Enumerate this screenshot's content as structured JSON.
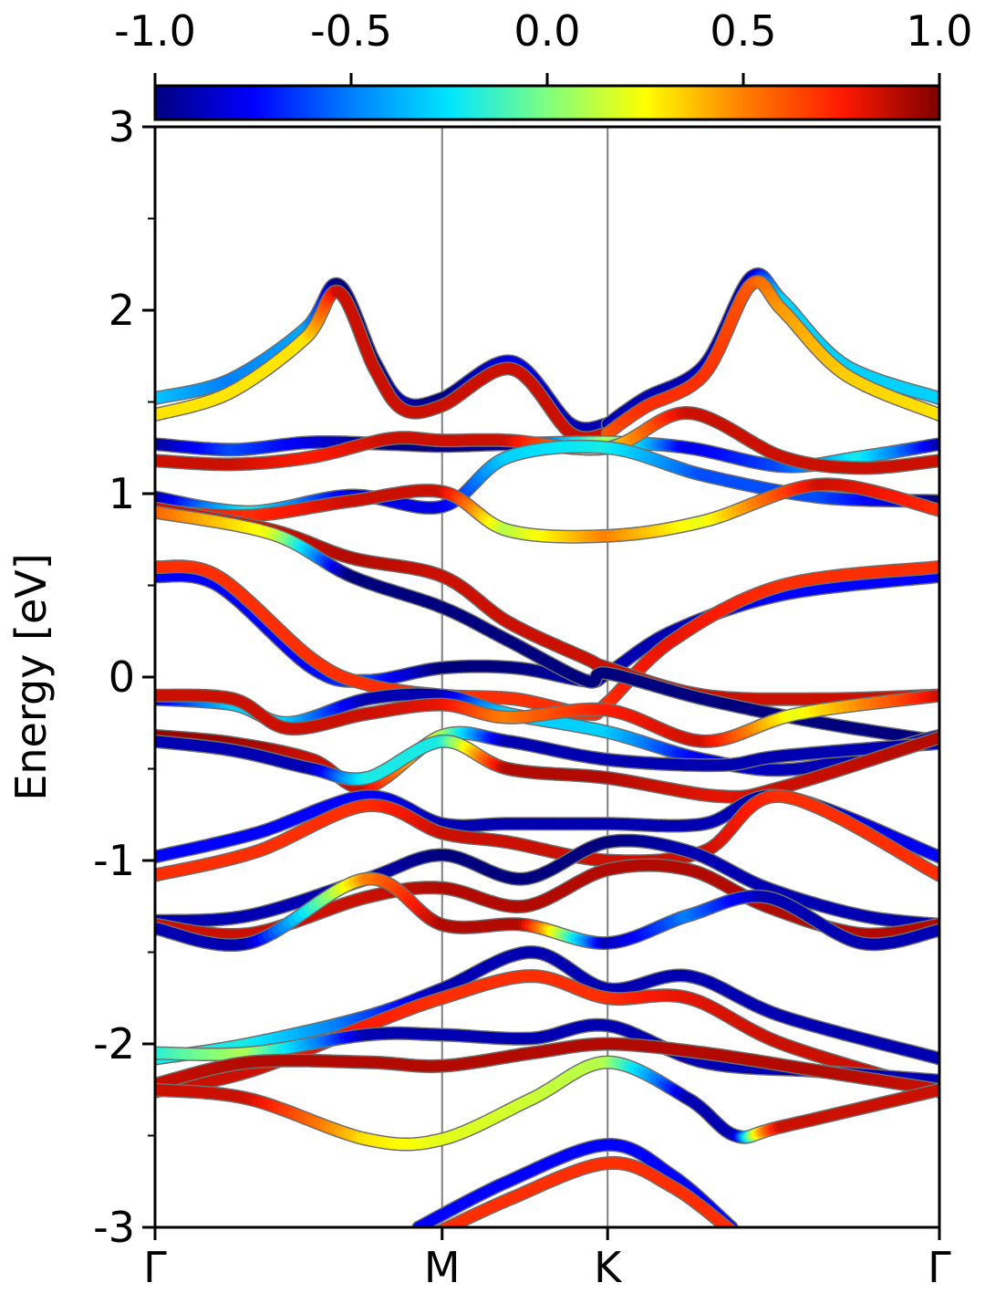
{
  "chart_data": {
    "type": "line",
    "title": "",
    "xlabel": "",
    "ylabel": "Energy [eV]",
    "ylim": [
      -3,
      3
    ],
    "y_major_ticks": [
      -3,
      -2,
      -1,
      0,
      1,
      2,
      3
    ],
    "y_tick_labels": [
      "-3",
      "-2",
      "-1",
      "0",
      "1",
      "2",
      "3"
    ],
    "y_minor_ticks": [
      -2.5,
      -1.5,
      -0.5,
      0.5,
      1.5,
      2.5
    ],
    "x_range": [
      0,
      1
    ],
    "x_ticks": [
      0,
      0.366,
      0.577,
      1
    ],
    "x_tick_labels": [
      "Γ",
      "M",
      "K",
      "Γ"
    ],
    "vlines_at": [
      0.366,
      0.577
    ],
    "grid": false,
    "colorbar": {
      "label": "",
      "range": [
        -1,
        1
      ],
      "ticks": [
        -1.0,
        -0.5,
        0.0,
        0.5,
        1.0
      ],
      "tick_labels": [
        "-1.0",
        "-0.5",
        "0.0",
        "0.5",
        "1.0"
      ],
      "colormap": "jet",
      "stops": [
        "#00007f",
        "#0000ff",
        "#007fff",
        "#00e5ff",
        "#7fff7f",
        "#ffff00",
        "#ff7f00",
        "#ff1a00",
        "#7f0000"
      ],
      "placement": "top"
    },
    "series": [
      {
        "x": [
          0,
          0.095,
          0.192,
          0.234,
          0.28,
          0.316,
          0.366,
          0.455,
          0.53,
          0.577
        ],
        "y": [
          1.52,
          1.62,
          1.9,
          2.14,
          1.72,
          1.5,
          1.52,
          1.72,
          1.38,
          1.38
        ],
        "colors": [
          -0.3,
          -0.5,
          -0.4,
          -1,
          -1,
          -0.9,
          -1,
          -0.8,
          -0.9,
          -0.9
        ]
      },
      {
        "x": [
          0,
          0.095,
          0.192,
          0.234,
          0.28,
          0.316,
          0.366,
          0.455,
          0.53,
          0.577
        ],
        "y": [
          1.43,
          1.55,
          1.85,
          2.1,
          1.68,
          1.46,
          1.48,
          1.68,
          1.33,
          1.33
        ],
        "colors": [
          0.3,
          0.3,
          0.3,
          0.85,
          0.85,
          0.85,
          0.85,
          0.85,
          0.85,
          0.85
        ]
      },
      {
        "x": [
          0.577,
          0.624,
          0.7,
          0.76,
          0.8,
          0.88,
          1
        ],
        "y": [
          1.38,
          1.52,
          1.7,
          2.18,
          2.05,
          1.7,
          1.52
        ],
        "colors": [
          -0.9,
          -0.9,
          -0.9,
          -0.9,
          -0.3,
          -0.3,
          -0.3
        ]
      },
      {
        "x": [
          0.577,
          0.624,
          0.7,
          0.76,
          0.8,
          0.88,
          1
        ],
        "y": [
          1.33,
          1.47,
          1.65,
          2.14,
          2.0,
          1.65,
          1.43
        ],
        "colors": [
          0.6,
          0.7,
          0.7,
          0.6,
          0.45,
          0.35,
          0.3
        ]
      },
      {
        "x": [
          0,
          0.1,
          0.2,
          0.3,
          0.366,
          0.45,
          0.577,
          0.68,
          0.8,
          0.9,
          1
        ],
        "y": [
          1.27,
          1.24,
          1.28,
          1.27,
          1.26,
          1.27,
          1.28,
          1.25,
          1.15,
          1.2,
          1.27
        ],
        "colors": [
          -1,
          -0.6,
          -0.8,
          -1,
          -1,
          -1,
          0.1,
          -0.8,
          -0.6,
          -0.2,
          -0.9
        ]
      },
      {
        "x": [
          0,
          0.1,
          0.2,
          0.3,
          0.366,
          0.45,
          0.577,
          0.68,
          0.8,
          0.9,
          1
        ],
        "y": [
          1.18,
          1.16,
          1.2,
          1.3,
          1.29,
          1.29,
          1.25,
          1.44,
          1.2,
          1.14,
          1.18
        ],
        "colors": [
          0.85,
          0.85,
          0.75,
          0.85,
          0.85,
          0.85,
          0.3,
          0.85,
          0.85,
          0.85,
          0.85
        ]
      },
      {
        "x": [
          0,
          0.12,
          0.25,
          0.366,
          0.45,
          0.577,
          0.7,
          0.85,
          1
        ],
        "y": [
          0.98,
          0.9,
          0.99,
          0.93,
          1.2,
          1.25,
          1.1,
          0.98,
          0.96
        ],
        "colors": [
          -1,
          -0.2,
          -0.8,
          -0.8,
          -0.3,
          -0.2,
          -0.6,
          -0.6,
          -1
        ]
      },
      {
        "x": [
          0,
          0.12,
          0.25,
          0.366,
          0.45,
          0.577,
          0.7,
          0.85,
          1
        ],
        "y": [
          0.91,
          0.88,
          0.96,
          1.01,
          0.8,
          0.77,
          0.85,
          1.05,
          0.91
        ],
        "colors": [
          0.85,
          0.7,
          0.85,
          0.85,
          0.1,
          0.5,
          0.2,
          0.85,
          0.7
        ]
      },
      {
        "x": [
          0,
          0.08,
          0.2,
          0.27,
          0.366,
          0.46,
          0.55,
          0.577,
          0.66,
          0.8,
          1
        ],
        "y": [
          0.55,
          0.5,
          0.05,
          -0.02,
          0.05,
          0.05,
          -0.02,
          0.02,
          0.25,
          0.45,
          0.55
        ],
        "colors": [
          -0.75,
          -0.75,
          -0.75,
          -0.6,
          -1,
          -1,
          -0.9,
          -0.9,
          -0.9,
          -0.75,
          -0.75
        ]
      },
      {
        "x": [
          0,
          0.08,
          0.2,
          0.27,
          0.366,
          0.46,
          0.55,
          0.577,
          0.66,
          0.8,
          1
        ],
        "y": [
          0.6,
          0.55,
          0.1,
          -0.04,
          -0.1,
          -0.12,
          -0.2,
          -0.14,
          0.2,
          0.5,
          0.6
        ],
        "colors": [
          0.7,
          0.7,
          0.7,
          0.7,
          0.7,
          0.7,
          0.7,
          0.7,
          0.8,
          0.7,
          0.7
        ]
      },
      {
        "x": [
          0,
          0.15,
          0.25,
          0.366,
          0.45,
          0.55,
          0.577,
          0.7,
          0.85,
          1
        ],
        "y": [
          0.92,
          0.8,
          0.65,
          0.55,
          0.3,
          0.1,
          0.05,
          -0.1,
          -0.12,
          -0.1
        ],
        "colors": [
          0.85,
          0.85,
          0.9,
          0.85,
          0.85,
          0.85,
          0.85,
          0.85,
          0.85,
          0.85
        ]
      },
      {
        "x": [
          0,
          0.15,
          0.25,
          0.366,
          0.45,
          0.55,
          0.577,
          0.7,
          0.85,
          1
        ],
        "y": [
          0.9,
          0.78,
          0.55,
          0.38,
          0.2,
          -0.02,
          0.02,
          -0.12,
          -0.25,
          -0.35
        ],
        "colors": [
          0.6,
          0.2,
          -1,
          -1,
          -1,
          -1,
          -1,
          -1,
          -1,
          -1
        ]
      },
      {
        "x": [
          0,
          0.1,
          0.17,
          0.27,
          0.366,
          0.45,
          0.577,
          0.7,
          0.82,
          1
        ],
        "y": [
          -0.12,
          -0.15,
          -0.25,
          -0.12,
          -0.1,
          -0.2,
          -0.3,
          -0.45,
          -0.5,
          -0.32
        ],
        "colors": [
          -0.9,
          -0.3,
          -0.3,
          -0.9,
          -0.9,
          -0.3,
          -0.3,
          -0.8,
          -0.9,
          -0.9
        ]
      },
      {
        "x": [
          0,
          0.1,
          0.17,
          0.27,
          0.366,
          0.45,
          0.577,
          0.7,
          0.82,
          1
        ],
        "y": [
          -0.1,
          -0.12,
          -0.28,
          -0.2,
          -0.15,
          -0.22,
          -0.18,
          -0.35,
          -0.2,
          -0.1
        ],
        "colors": [
          0.85,
          0.85,
          0.85,
          0.85,
          0.8,
          0.5,
          0.75,
          0.85,
          0.2,
          0.85
        ]
      },
      {
        "x": [
          0,
          0.1,
          0.2,
          0.27,
          0.366,
          0.45,
          0.577,
          0.72,
          0.8,
          1
        ],
        "y": [
          -0.32,
          -0.36,
          -0.45,
          -0.6,
          -0.32,
          -0.35,
          -0.45,
          -0.48,
          -0.43,
          -0.36
        ],
        "colors": [
          0.95,
          0.95,
          0.85,
          0.85,
          0.1,
          -0.9,
          -0.9,
          -0.9,
          -0.9,
          -0.9
        ]
      },
      {
        "x": [
          0,
          0.1,
          0.2,
          0.27,
          0.366,
          0.45,
          0.577,
          0.72,
          0.8,
          1
        ],
        "y": [
          -0.35,
          -0.4,
          -0.5,
          -0.55,
          -0.35,
          -0.5,
          -0.55,
          -0.65,
          -0.6,
          -0.33
        ],
        "colors": [
          -0.9,
          -0.9,
          -0.9,
          -0.2,
          -0.2,
          0.9,
          0.9,
          0.8,
          0.85,
          0.9
        ]
      },
      {
        "x": [
          0,
          0.13,
          0.27,
          0.366,
          0.45,
          0.577,
          0.7,
          0.8,
          1
        ],
        "y": [
          -0.98,
          -0.85,
          -0.65,
          -0.8,
          -0.8,
          -0.8,
          -0.8,
          -0.65,
          -0.98
        ],
        "colors": [
          -0.75,
          -0.75,
          -0.75,
          -0.9,
          -0.9,
          -0.9,
          -0.9,
          -0.9,
          -0.75
        ]
      },
      {
        "x": [
          0,
          0.13,
          0.27,
          0.366,
          0.45,
          0.577,
          0.7,
          0.8,
          1
        ],
        "y": [
          -1.08,
          -0.95,
          -0.7,
          -0.85,
          -0.9,
          -1.0,
          -0.95,
          -0.65,
          -1.08
        ],
        "colors": [
          0.7,
          0.7,
          0.7,
          0.85,
          0.85,
          0.85,
          0.85,
          0.7,
          0.7
        ]
      },
      {
        "x": [
          0,
          0.12,
          0.27,
          0.366,
          0.47,
          0.577,
          0.68,
          0.78,
          0.9,
          1
        ],
        "y": [
          -1.33,
          -1.3,
          -1.1,
          -0.97,
          -1.1,
          -0.9,
          -0.95,
          -1.15,
          -1.3,
          -1.35
        ],
        "colors": [
          -0.9,
          -0.9,
          -0.9,
          -1,
          -1,
          -1,
          -0.9,
          -0.9,
          -0.9,
          -0.9
        ]
      },
      {
        "x": [
          0,
          0.12,
          0.27,
          0.366,
          0.47,
          0.577,
          0.68,
          0.78,
          0.9,
          1
        ],
        "y": [
          -1.35,
          -1.4,
          -1.2,
          -1.15,
          -1.25,
          -1.05,
          -1.05,
          -1.25,
          -1.4,
          -1.35
        ],
        "colors": [
          0.85,
          0.85,
          0.85,
          0.9,
          0.9,
          0.9,
          0.9,
          0.9,
          0.9,
          0.9
        ]
      },
      {
        "x": [
          0,
          0.12,
          0.27,
          0.366,
          0.47,
          0.577,
          0.68,
          0.78,
          0.9,
          1
        ],
        "y": [
          -1.37,
          -1.45,
          -1.1,
          -1.35,
          -1.35,
          -1.45,
          -1.3,
          -1.2,
          -1.45,
          -1.38
        ],
        "colors": [
          -0.9,
          -0.9,
          0.5,
          0.9,
          0.9,
          -0.9,
          -0.5,
          -0.9,
          -0.9,
          -0.9
        ]
      },
      {
        "x": [
          0,
          0.12,
          0.27,
          0.366,
          0.48,
          0.577,
          0.68,
          0.8,
          1
        ],
        "y": [
          -2.08,
          -2.0,
          -1.85,
          -1.7,
          -1.5,
          -1.7,
          -1.63,
          -1.85,
          -2.08
        ],
        "colors": [
          -0.2,
          -0.2,
          -0.6,
          -0.9,
          -0.9,
          -0.9,
          -0.9,
          -0.9,
          -0.9
        ]
      },
      {
        "x": [
          0,
          0.12,
          0.27,
          0.366,
          0.48,
          0.577,
          0.68,
          0.8,
          1
        ],
        "y": [
          -2.26,
          -2.15,
          -1.9,
          -1.75,
          -1.63,
          -1.75,
          -1.75,
          -2.0,
          -2.26
        ],
        "colors": [
          0.85,
          0.85,
          0.75,
          0.7,
          0.7,
          0.7,
          0.8,
          0.85,
          0.85
        ]
      },
      {
        "x": [
          0,
          0.12,
          0.27,
          0.366,
          0.48,
          0.577,
          0.7,
          0.85,
          1
        ],
        "y": [
          -2.05,
          -2.05,
          -1.95,
          -1.95,
          -1.97,
          -1.9,
          -2.1,
          -2.15,
          -2.2
        ],
        "colors": [
          -0.2,
          0.1,
          -0.9,
          -0.9,
          -0.9,
          -0.9,
          -0.9,
          -0.9,
          -0.9
        ]
      },
      {
        "x": [
          0,
          0.12,
          0.27,
          0.366,
          0.48,
          0.577,
          0.7,
          0.85,
          1
        ],
        "y": [
          -2.22,
          -2.1,
          -2.1,
          -2.12,
          -2.05,
          -2.0,
          -2.05,
          -2.15,
          -2.25
        ],
        "colors": [
          0.85,
          0.9,
          0.9,
          0.9,
          0.9,
          0.9,
          0.9,
          0.9,
          0.85
        ]
      },
      {
        "x": [
          0,
          0.12,
          0.27,
          0.366,
          0.48,
          0.577,
          0.68,
          0.74,
          0.8,
          1
        ],
        "y": [
          -2.25,
          -2.3,
          -2.52,
          -2.52,
          -2.3,
          -2.1,
          -2.3,
          -2.5,
          -2.45,
          -2.25
        ],
        "colors": [
          0.85,
          0.85,
          0.3,
          0.2,
          0.15,
          0.1,
          -0.9,
          -0.9,
          0.85,
          0.85
        ]
      },
      {
        "x": [
          0.336,
          0.45,
          0.577,
          0.66,
          0.735
        ],
        "y": [
          -3.0,
          -2.75,
          -2.55,
          -2.72,
          -3.0
        ],
        "colors": [
          -0.75,
          -0.75,
          -0.75,
          -0.75,
          -0.75
        ]
      },
      {
        "x": [
          0.336,
          0.45,
          0.577,
          0.66,
          0.735
        ],
        "y": [
          -3.08,
          -2.85,
          -2.65,
          -2.78,
          -3.02
        ],
        "colors": [
          0.7,
          0.7,
          0.7,
          0.7,
          0.7
        ]
      }
    ]
  }
}
